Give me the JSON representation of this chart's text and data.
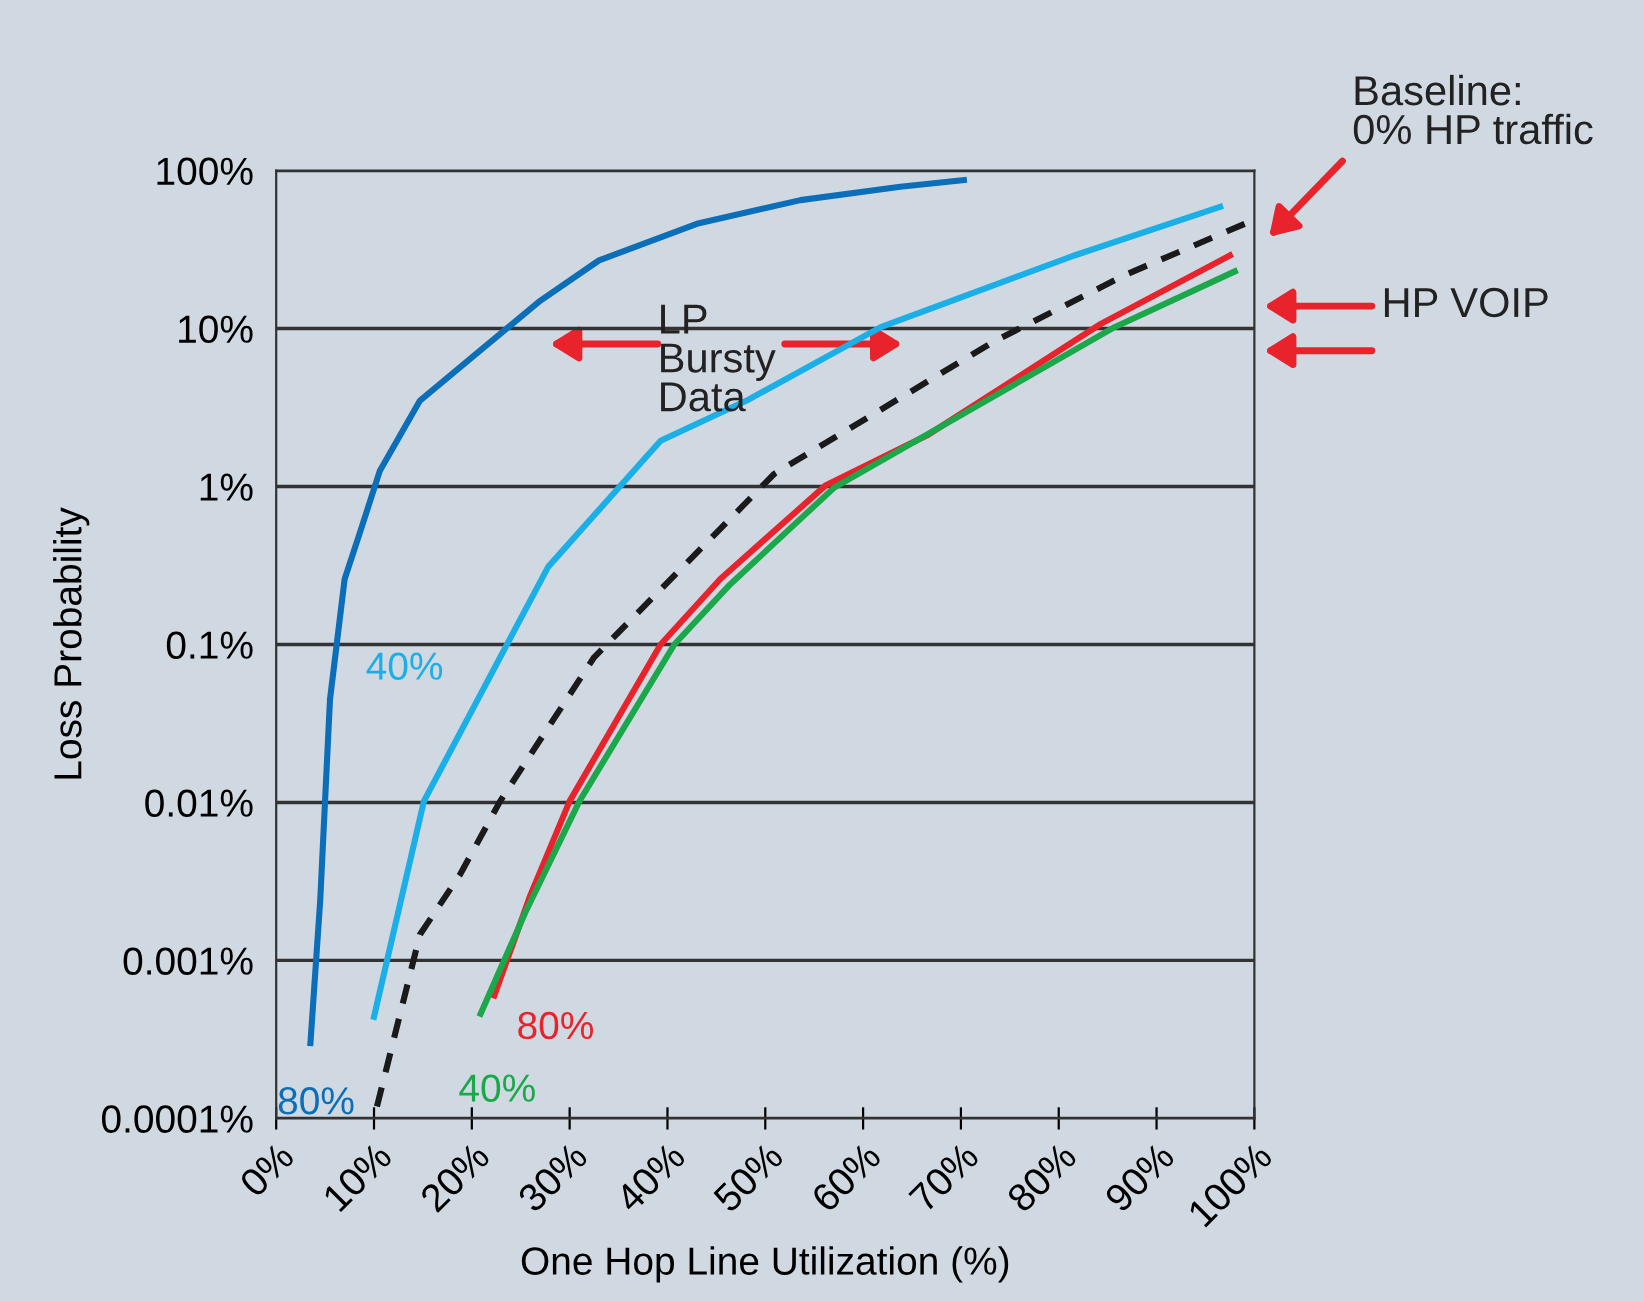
{
  "chart_data": {
    "type": "line",
    "xlabel": "One Hop Line Utilization (%)",
    "ylabel": "Loss Probability",
    "log": "y",
    "grid": "y",
    "legend": false,
    "marker": "none",
    "xlim": [
      0,
      100
    ],
    "xticks": [
      {
        "value": 0,
        "label": "0%"
      },
      {
        "value": 10,
        "label": "10%"
      },
      {
        "value": 20,
        "label": "20%"
      },
      {
        "value": 30,
        "label": "30%"
      },
      {
        "value": 40,
        "label": "40%"
      },
      {
        "value": 50,
        "label": "50%"
      },
      {
        "value": 60,
        "label": "60%"
      },
      {
        "value": 70,
        "label": "70%"
      },
      {
        "value": 80,
        "label": "80%"
      },
      {
        "value": 90,
        "label": "90%"
      },
      {
        "value": 100,
        "label": "100%"
      }
    ],
    "ylim": [
      0.0001,
      100
    ],
    "yticks": [
      {
        "value": 0.0001,
        "label": "0.0001%"
      },
      {
        "value": 0.001,
        "label": "0.001%"
      },
      {
        "value": 0.01,
        "label": "0.01%"
      },
      {
        "value": 0.1,
        "label": "0.1%"
      },
      {
        "value": 1,
        "label": "1%"
      },
      {
        "value": 10,
        "label": "10%"
      },
      {
        "value": 100,
        "label": "100%"
      }
    ],
    "series": [
      {
        "name": "80%",
        "color": "#0a6fb8",
        "line_style": "solid",
        "x": [
          3.5,
          4.5,
          5.5,
          7,
          8.6,
          10.6,
          14.7,
          20.9,
          27,
          33,
          43,
          53.6,
          63.8,
          70.3
        ],
        "values": [
          0.0003,
          0.0024,
          0.045,
          0.26,
          0.52,
          1.26,
          3.5,
          7.3,
          15,
          27,
          46,
          65,
          79,
          87
        ]
      },
      {
        "name": "40%",
        "color": "#1bafe8",
        "line_style": "solid",
        "x": [
          10,
          15.1,
          27.8,
          39.3,
          48.1,
          61.8,
          81.6,
          96.5
        ],
        "values": [
          0.00044,
          0.0102,
          0.31,
          1.95,
          3.5,
          10.2,
          29,
          59
        ]
      },
      {
        "color": "#1a1a1a",
        "line_style": "dashed",
        "x": [
          10,
          14.7,
          18.8,
          22.9,
          32.5,
          50.9,
          73.4,
          86.9,
          99
        ],
        "values": [
          0.0001,
          0.00146,
          0.0035,
          0.0102,
          0.083,
          1.2,
          8.3,
          22,
          46
        ]
      },
      {
        "name": "80%",
        "color": "#e8232b",
        "line_style": "solid",
        "x": [
          22.3,
          26,
          30,
          39.3,
          45.4,
          56.2,
          66.5,
          84.3,
          97.5
        ],
        "values": [
          0.0006,
          0.0026,
          0.0102,
          0.1,
          0.26,
          1.02,
          2.1,
          10.7,
          29
        ]
      },
      {
        "name": "40%",
        "color": "#1aa84a",
        "line_style": "solid",
        "x": [
          20.9,
          25.6,
          31,
          40.7,
          46.4,
          57,
          85.7,
          98
        ],
        "values": [
          0.00046,
          0.0021,
          0.0102,
          0.1,
          0.24,
          0.98,
          10.2,
          23
        ]
      }
    ],
    "annotations": [
      "LP\nBursty\nData",
      "Baseline:\n0% HP traffic",
      "HP VOIP"
    ]
  }
}
